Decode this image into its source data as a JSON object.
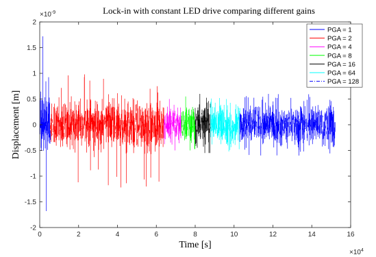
{
  "chart_data": {
    "type": "line",
    "title": "Lock-in with constant LED drive comparing different gains",
    "xlabel": "Time [s]",
    "ylabel": "Displacement [m]",
    "x_exponent_label": "×10",
    "x_exponent_power": "4",
    "y_exponent_label": "×10",
    "y_exponent_power": "-9",
    "xlim": [
      0,
      16
    ],
    "ylim": [
      -2,
      2
    ],
    "x_ticks": [
      "0",
      "2",
      "4",
      "6",
      "8",
      "10",
      "12",
      "14",
      "16"
    ],
    "y_ticks": [
      "-2",
      "-1.5",
      "-1",
      "-0.5",
      "0",
      "0.5",
      "1",
      "1.5",
      "2"
    ],
    "grid": false,
    "legend_position": "top-right",
    "series": [
      {
        "name": "PGA = 1",
        "color": "#0000ff",
        "line_style": "solid",
        "x_range": [
          0,
          0.55
        ],
        "typical_amplitude": 0.8,
        "peak_max": 1.72,
        "peak_min": -1.68
      },
      {
        "name": "PGA = 2",
        "color": "#ff0000",
        "line_style": "solid",
        "x_range": [
          0.55,
          6.4
        ],
        "typical_amplitude": 0.55,
        "peak_max": 0.98,
        "peak_min": -1.22
      },
      {
        "name": "PGA = 4",
        "color": "#ff00ff",
        "line_style": "solid",
        "x_range": [
          6.4,
          7.3
        ],
        "typical_amplitude": 0.45,
        "peak_max": 0.5,
        "peak_min": -0.5
      },
      {
        "name": "PGA = 8",
        "color": "#00ff00",
        "line_style": "solid",
        "x_range": [
          7.3,
          8.0
        ],
        "typical_amplitude": 0.45,
        "peak_max": 0.55,
        "peak_min": -0.5
      },
      {
        "name": "PGA = 16",
        "color": "#000000",
        "line_style": "solid",
        "x_range": [
          8.0,
          8.8
        ],
        "typical_amplitude": 0.45,
        "peak_max": 0.6,
        "peak_min": -0.55
      },
      {
        "name": "PGA = 64",
        "color": "#00ffff",
        "line_style": "solid",
        "x_range": [
          8.8,
          10.3
        ],
        "typical_amplitude": 0.45,
        "peak_max": 0.52,
        "peak_min": -0.52
      },
      {
        "name": "PGA = 128",
        "color": "#0000ff",
        "line_style": "dash-dot",
        "x_range": [
          10.3,
          15.2
        ],
        "typical_amplitude": 0.45,
        "peak_max": 0.6,
        "peak_min": -0.6
      }
    ]
  }
}
